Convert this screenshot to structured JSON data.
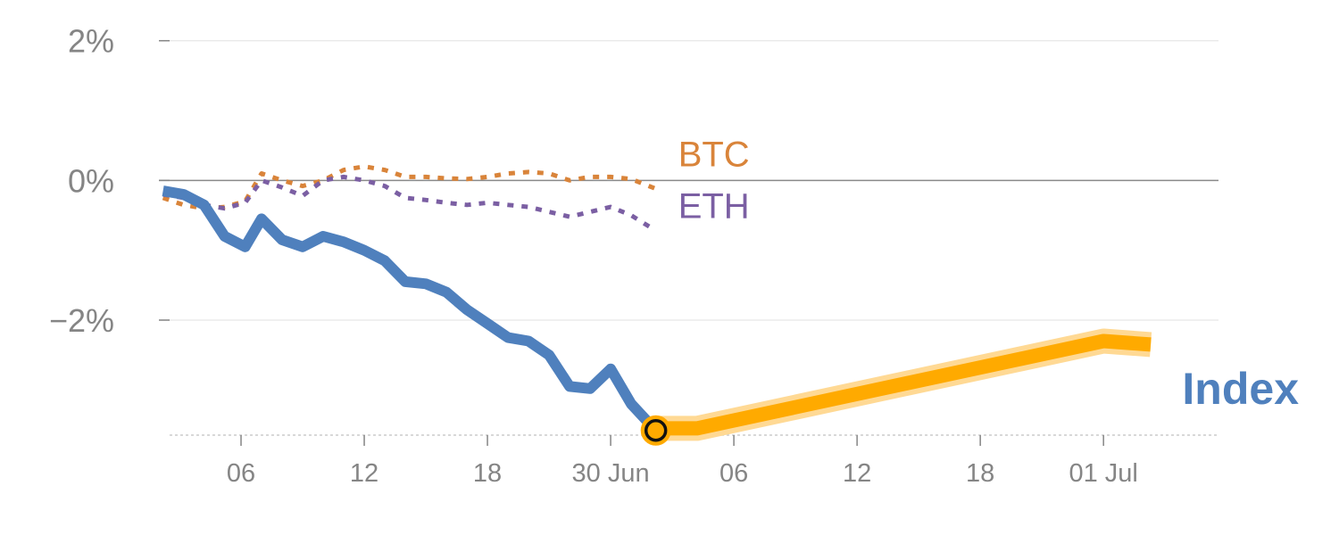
{
  "chart_data": {
    "type": "line",
    "ylim": [
      -3.8,
      2.2
    ],
    "grid": true,
    "y_ticks": [
      {
        "value": 2,
        "label": "2%"
      },
      {
        "value": 0,
        "label": "0%"
      },
      {
        "value": -2,
        "label": "−2%"
      }
    ],
    "x_ticks": [
      {
        "t": 4.0,
        "label": "06"
      },
      {
        "t": 10.0,
        "label": "12"
      },
      {
        "t": 16.0,
        "label": "18"
      },
      {
        "t": 22.0,
        "label": "30 Jun"
      },
      {
        "t": 28.0,
        "label": "06"
      },
      {
        "t": 34.0,
        "label": "12"
      },
      {
        "t": 40.0,
        "label": "18"
      },
      {
        "t": 46.0,
        "label": "01 Jul"
      }
    ],
    "series": [
      {
        "name": "BTC",
        "color": "#d9843a",
        "style": "dotted",
        "t": [
          0.2,
          1.2,
          2.2,
          3.2,
          4.2,
          5.0,
          6.0,
          7.0,
          8.0,
          9.0,
          10.0,
          11.0,
          12.0,
          13.0,
          14.0,
          15.0,
          16.0,
          17.0,
          18.0,
          19.0,
          20.0,
          21.0,
          22.0,
          23.0,
          24.2
        ],
        "values": [
          -0.25,
          -0.35,
          -0.4,
          -0.38,
          -0.3,
          0.1,
          0.0,
          -0.08,
          0.0,
          0.15,
          0.2,
          0.15,
          0.05,
          0.05,
          0.03,
          0.02,
          0.05,
          0.1,
          0.12,
          0.1,
          0.0,
          0.05,
          0.05,
          0.02,
          -0.12
        ]
      },
      {
        "name": "ETH",
        "color": "#7b5fa3",
        "style": "dotted",
        "t": [
          0.2,
          1.2,
          2.2,
          3.2,
          4.2,
          5.0,
          6.0,
          7.0,
          8.0,
          9.0,
          10.0,
          11.0,
          12.0,
          13.0,
          14.0,
          15.0,
          16.0,
          17.0,
          18.0,
          19.0,
          20.0,
          21.0,
          22.0,
          23.0,
          24.2
        ],
        "values": [
          -0.2,
          -0.25,
          -0.35,
          -0.4,
          -0.32,
          0.0,
          -0.1,
          -0.22,
          0.0,
          0.05,
          0.0,
          -0.08,
          -0.25,
          -0.28,
          -0.32,
          -0.35,
          -0.32,
          -0.35,
          -0.38,
          -0.45,
          -0.52,
          -0.45,
          -0.38,
          -0.5,
          -0.72
        ]
      },
      {
        "name": "Index",
        "color": "#4f80bd",
        "style": "solid",
        "t": [
          0.2,
          1.2,
          2.2,
          3.2,
          4.2,
          5.0,
          6.0,
          7.0,
          8.0,
          9.0,
          10.0,
          11.0,
          12.0,
          13.0,
          14.0,
          15.0,
          16.0,
          17.0,
          18.0,
          19.0,
          20.0,
          21.0,
          22.0,
          23.0,
          24.2
        ],
        "values": [
          -0.15,
          -0.2,
          -0.35,
          -0.8,
          -0.95,
          -0.55,
          -0.85,
          -0.95,
          -0.8,
          -0.88,
          -1.0,
          -1.15,
          -1.45,
          -1.48,
          -1.6,
          -1.85,
          -2.05,
          -2.25,
          -2.3,
          -2.5,
          -2.95,
          -2.98,
          -2.7,
          -3.2,
          -3.58
        ]
      }
    ],
    "projection": {
      "color": "#ffaa00",
      "halo_color": "#ffd994",
      "t": [
        24.2,
        26.2,
        46.0,
        48.3
      ],
      "values": [
        -3.55,
        -3.55,
        -2.3,
        -2.35
      ]
    },
    "marker": {
      "t": 24.2,
      "value": -3.58
    }
  }
}
